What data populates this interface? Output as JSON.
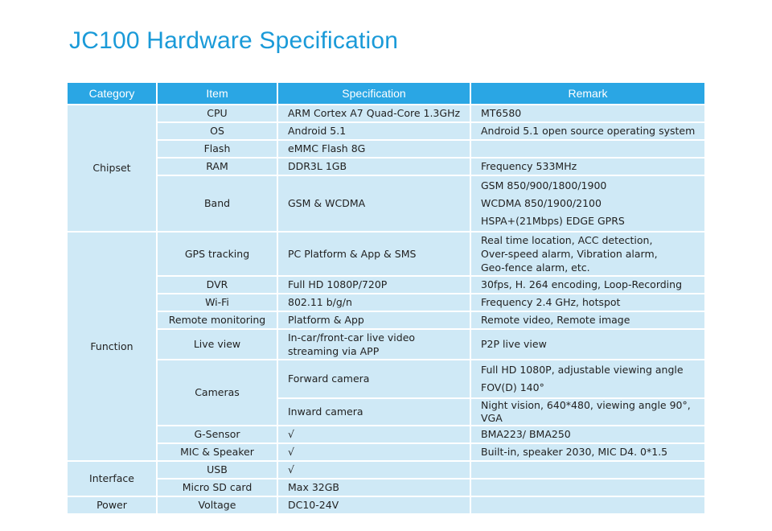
{
  "title": "JC100 Hardware Specification",
  "colors": {
    "title": "#1a9ad8",
    "header_bg": "#2aa6e4",
    "cell_bg": "#cfe9f6"
  },
  "headers": {
    "category": "Category",
    "item": "Item",
    "specification": "Specification",
    "remark": "Remark"
  },
  "categories": {
    "chipset": "Chipset",
    "function": "Function",
    "interface": "Interface",
    "power": "Power"
  },
  "rows": {
    "cpu": {
      "item": "CPU",
      "spec": "ARM Cortex A7 Quad-Core 1.3GHz",
      "remark": "MT6580"
    },
    "os": {
      "item": "OS",
      "spec": "Android 5.1",
      "remark": "Android 5.1 open source operating system"
    },
    "flash": {
      "item": "Flash",
      "spec": "eMMC Flash 8G",
      "remark": ""
    },
    "ram": {
      "item": "RAM",
      "spec": "DDR3L 1GB",
      "remark": "Frequency 533MHz"
    },
    "band": {
      "item": "Band",
      "spec": "GSM & WCDMA",
      "remark_lines": [
        "GSM 850/900/1800/1900",
        "WCDMA 850/1900/2100",
        "HSPA+(21Mbps)  EDGE  GPRS"
      ]
    },
    "gps": {
      "item": "GPS tracking",
      "spec": "PC Platform & App & SMS",
      "remark_lines": [
        "Real time location, ACC detection,",
        "Over-speed alarm, Vibration alarm,",
        "Geo-fence alarm, etc."
      ]
    },
    "dvr": {
      "item": "DVR",
      "spec": "Full HD 1080P/720P",
      "remark": "30fps, H. 264 encoding, Loop-Recording"
    },
    "wifi": {
      "item": "Wi-Fi",
      "spec": "802.11 b/g/n",
      "remark": "Frequency 2.4 GHz, hotspot"
    },
    "remote": {
      "item": "Remote monitoring",
      "spec": "Platform & App",
      "remark": "Remote video, Remote image"
    },
    "live": {
      "item": "Live view",
      "spec_lines": [
        "In-car/front-car live video",
        "streaming via APP"
      ],
      "remark": "P2P live view"
    },
    "cameras": {
      "item": "Cameras",
      "forward": {
        "spec": "Forward camera",
        "remark_lines": [
          "Full HD 1080P, adjustable viewing angle",
          "FOV(D) 140°"
        ]
      },
      "inward": {
        "spec": "Inward camera",
        "remark": "Night vision, 640*480, viewing angle 90°, VGA"
      }
    },
    "gsensor": {
      "item": "G-Sensor",
      "spec": "√",
      "remark": "BMA223/ BMA250"
    },
    "mic": {
      "item": "MIC & Speaker",
      "spec": "√",
      "remark": "Built-in, speaker 2030, MIC D4. 0*1.5"
    },
    "usb": {
      "item": "USB",
      "spec": "√",
      "remark": ""
    },
    "sd": {
      "item": "Micro SD card",
      "spec": "Max 32GB",
      "remark": ""
    },
    "voltage": {
      "item": "Voltage",
      "spec": "DC10-24V",
      "remark": ""
    }
  }
}
